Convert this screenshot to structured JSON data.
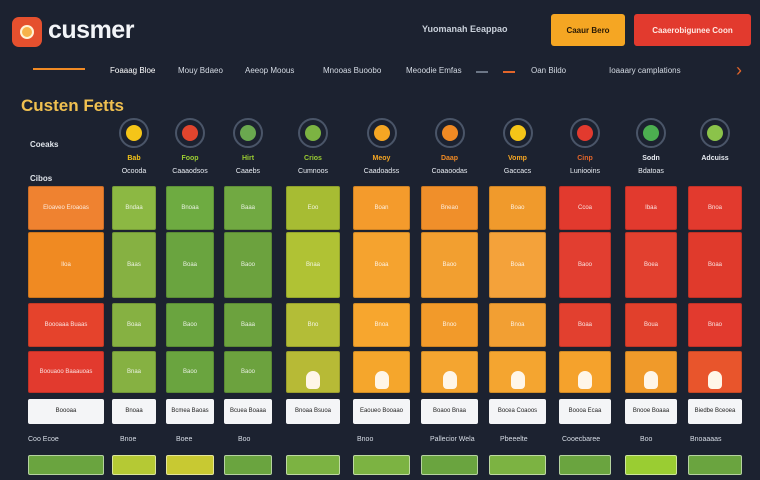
{
  "header": {
    "app_title": "cusmer",
    "top_link": "Yuomanah Eeappao",
    "primary_button": "Caaur Bero",
    "secondary_button": "Caaerobigunee Coon"
  },
  "nav": [
    "Foaaag Bloe",
    "Mouy Bdaeo",
    "Aeeop Moous",
    "Mnooas Buoobo",
    "Meoodie Emfas",
    "Oan Bildo",
    "Ioaaary camplations"
  ],
  "section": {
    "title": "Custen Fetts",
    "label_a": "Coeaks",
    "label_b": "Cibos"
  },
  "columns": [
    {
      "name": "Bab",
      "sub": "Ocooda",
      "icon_color": "#f5c518",
      "name_color": "#f5c518"
    },
    {
      "name": "Foop",
      "sub": "Caaaodsos",
      "icon_color": "#e2452e",
      "name_color": "#9acd32"
    },
    {
      "name": "Hirt",
      "sub": "Caaebs",
      "icon_color": "#6aa84f",
      "name_color": "#9acd32"
    },
    {
      "name": "Crios",
      "sub": "Cumnoos",
      "icon_color": "#7cb342",
      "name_color": "#9acd32"
    },
    {
      "name": "Meoy",
      "sub": "Caadoadss",
      "icon_color": "#f5a623",
      "name_color": "#f5a623"
    },
    {
      "name": "Daap",
      "sub": "Coaaoodas",
      "icon_color": "#f08a24",
      "name_color": "#f08a24"
    },
    {
      "name": "Vomp",
      "sub": "Gaccacs",
      "icon_color": "#f5c518",
      "name_color": "#f5a623"
    },
    {
      "name": "Cinp",
      "sub": "Luniooins",
      "icon_color": "#e23a2e",
      "name_color": "#e2652a"
    },
    {
      "name": "Sodn",
      "sub": "Bdatoas",
      "icon_color": "#4caf50",
      "name_color": "#e8ecf2"
    },
    {
      "name": "Adcuiss",
      "sub": "",
      "icon_color": "#8bc34a",
      "name_color": "#e8ecf2"
    }
  ],
  "grid_text": {
    "row0": [
      "Eloaveo Eroaoas",
      "Bndaa",
      "Bnoaa",
      "Baaa",
      "Eoo",
      "Boan",
      "Bneao",
      "Boao",
      "Ccoa",
      "Ibaa",
      "Bnoa"
    ],
    "row1": [
      "Iloa",
      "Baas",
      "Boaa",
      "Baoo",
      "Bnaa",
      "Boaa",
      "Baoo",
      "Boaa",
      "Baoo",
      "Boea",
      "Boaa"
    ],
    "row2": [
      "Boooaaa Buaas",
      "Boaa",
      "Baoo",
      "Baaa",
      "Bno",
      "Bnoa",
      "Bnoo",
      "Bnoa",
      "Boaa",
      "Boua",
      "Bnao"
    ],
    "row3": [
      "Boouaoo Baaauoas",
      "Bnaa",
      "Baoo",
      "Baoo"
    ]
  },
  "cards": [
    "Boooaa",
    "Bnoaa",
    "Bcmea Baoas",
    "Bcuea Boaaa",
    "Bnoaa Bsuoa",
    "Eaoueo Booaao",
    "Boaoo Bnaa",
    "Bocea Coaoos",
    "Boooa Ecaa",
    "Bnooe Boaaa",
    "Biedbe Bceoea"
  ],
  "footer_labels": [
    "Coo Ecoe",
    "Bnoe",
    "Boee",
    "Boo",
    "Bnoo",
    "Pallecior Wela",
    "Pbeeelte",
    "Cooecbaree",
    "Boo",
    "Bnoaaaas"
  ],
  "colors": {
    "orange": "#f08a24",
    "deep_orange": "#f59f2b",
    "red": "#e23a2e",
    "green": "#7cb342",
    "yellow_green": "#b5c934"
  }
}
